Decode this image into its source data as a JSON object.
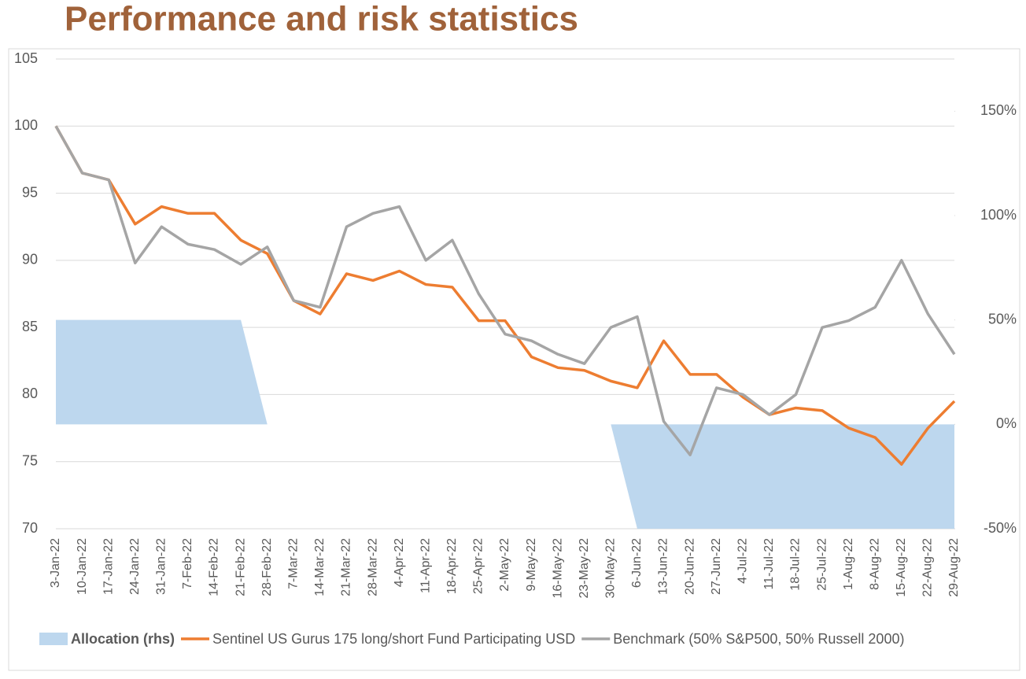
{
  "chart_data": {
    "type": "line",
    "title": "Performance and risk statistics",
    "categories": [
      "3-Jan-22",
      "10-Jan-22",
      "17-Jan-22",
      "24-Jan-22",
      "31-Jan-22",
      "7-Feb-22",
      "14-Feb-22",
      "21-Feb-22",
      "28-Feb-22",
      "7-Mar-22",
      "14-Mar-22",
      "21-Mar-22",
      "28-Mar-22",
      "4-Apr-22",
      "11-Apr-22",
      "18-Apr-22",
      "25-Apr-22",
      "2-May-22",
      "9-May-22",
      "16-May-22",
      "23-May-22",
      "30-May-22",
      "6-Jun-22",
      "13-Jun-22",
      "20-Jun-22",
      "27-Jun-22",
      "4-Jul-22",
      "11-Jul-22",
      "18-Jul-22",
      "25-Jul-22",
      "1-Aug-22",
      "8-Aug-22",
      "15-Aug-22",
      "22-Aug-22",
      "29-Aug-22"
    ],
    "series": [
      {
        "name": "Allocation (rhs)",
        "color": "#bdd7ee",
        "axis": "y2",
        "kind": "area",
        "values": [
          50,
          50,
          50,
          50,
          50,
          50,
          50,
          50,
          0,
          0,
          0,
          0,
          0,
          0,
          0,
          0,
          0,
          0,
          0,
          0,
          0,
          0,
          -50,
          -50,
          -50,
          -50,
          -50,
          -50,
          -50,
          -50,
          -50,
          -50,
          -50,
          -50,
          -50
        ]
      },
      {
        "name": "Sentinel US Gurus 175 long/short Fund Participating USD",
        "color": "#ed7d31",
        "values": [
          100,
          96.5,
          96,
          92.7,
          94,
          93.5,
          93.5,
          91.5,
          90.5,
          87,
          86,
          89,
          88.5,
          89.2,
          88.2,
          88,
          85.5,
          85.5,
          82.8,
          82,
          81.8,
          81,
          80.5,
          84,
          81.5,
          81.5,
          79.8,
          78.5,
          79,
          78.8,
          77.5,
          76.8,
          74.8,
          77.5,
          79.5
        ]
      },
      {
        "name": "Benchmark (50% S&P500, 50% Russell 2000)",
        "color": "#a5a5a5",
        "values": [
          100,
          96.5,
          96,
          89.8,
          92.5,
          91.2,
          90.8,
          89.7,
          91,
          87,
          86.5,
          92.5,
          93.5,
          94,
          90,
          91.5,
          87.5,
          84.5,
          84,
          83,
          82.3,
          85,
          85.8,
          78,
          75.5,
          80.5,
          80,
          78.5,
          80,
          85,
          85.5,
          86.5,
          90,
          86,
          83
        ]
      }
    ],
    "ylim": [
      70,
      105
    ],
    "yticks": [
      70,
      75,
      80,
      85,
      90,
      95,
      100,
      105
    ],
    "y2lim": [
      -50,
      175
    ],
    "y2ticks": [
      {
        "value": -50,
        "label": "-50%"
      },
      {
        "value": 0,
        "label": "0%"
      },
      {
        "value": 50,
        "label": "50%"
      },
      {
        "value": 100,
        "label": "100%"
      },
      {
        "value": 150,
        "label": "150%"
      }
    ],
    "grid": true
  }
}
